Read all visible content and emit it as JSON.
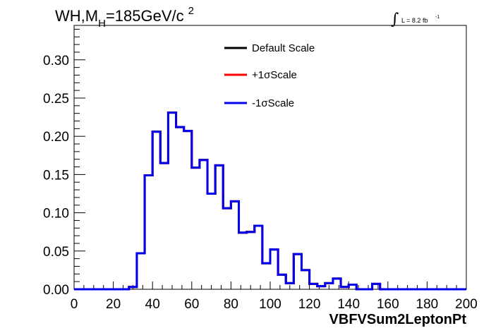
{
  "chart_data": {
    "type": "line",
    "title": {
      "main": "WH,M",
      "sub": "H",
      "rest": "=185GeV/c",
      "sup": "2"
    },
    "lumi": {
      "symbol": "∫",
      "text": "L = 8.2 fb",
      "sup": "-1"
    },
    "xlabel": "VBFVSum2LeptonPt",
    "ylabel": "",
    "xlim": [
      0,
      200
    ],
    "ylim": [
      0,
      0.345
    ],
    "x_ticks": [
      "0",
      "20",
      "40",
      "60",
      "80",
      "100",
      "120",
      "140",
      "160",
      "180",
      "200"
    ],
    "y_ticks": [
      "0.00",
      "0.05",
      "0.10",
      "0.15",
      "0.20",
      "0.25",
      "0.30"
    ],
    "bin_width": 4,
    "bin_edges_start": 0,
    "legend": [
      {
        "label": "Default Scale",
        "color": "#000000"
      },
      {
        "label": "+1σScale",
        "color": "#ff0000"
      },
      {
        "label": "-1σScale",
        "color": "#0000ee"
      }
    ],
    "series": [
      {
        "name": "Default Scale",
        "color": "#000000",
        "values": [
          0,
          0,
          0,
          0,
          0,
          0,
          0,
          0.003,
          0.047,
          0.149,
          0.206,
          0.165,
          0.231,
          0.212,
          0.207,
          0.159,
          0.169,
          0.125,
          0.162,
          0.106,
          0.115,
          0.074,
          0.075,
          0.083,
          0.034,
          0.052,
          0.019,
          0.008,
          0.046,
          0.025,
          0.007,
          0.004,
          0.008,
          0.014,
          0.003,
          0.006,
          0,
          0,
          0.007,
          0,
          0,
          0,
          0,
          0,
          0,
          0,
          0,
          0,
          0,
          0
        ]
      },
      {
        "name": "+1σScale",
        "color": "#ff0000",
        "values": [
          0,
          0,
          0,
          0,
          0,
          0,
          0,
          0.003,
          0.047,
          0.149,
          0.206,
          0.165,
          0.231,
          0.212,
          0.207,
          0.159,
          0.169,
          0.125,
          0.162,
          0.106,
          0.115,
          0.074,
          0.075,
          0.083,
          0.034,
          0.052,
          0.019,
          0.008,
          0.046,
          0.025,
          0.007,
          0.004,
          0.008,
          0.014,
          0.003,
          0.006,
          0,
          0,
          0.007,
          0,
          0,
          0,
          0,
          0,
          0,
          0,
          0,
          0,
          0,
          0
        ]
      },
      {
        "name": "-1σScale",
        "color": "#0000ee",
        "values": [
          0,
          0,
          0,
          0,
          0,
          0,
          0,
          0.003,
          0.047,
          0.149,
          0.206,
          0.165,
          0.231,
          0.212,
          0.207,
          0.159,
          0.169,
          0.125,
          0.162,
          0.106,
          0.115,
          0.074,
          0.075,
          0.083,
          0.034,
          0.052,
          0.019,
          0.008,
          0.046,
          0.025,
          0.007,
          0.004,
          0.008,
          0.014,
          0.003,
          0.006,
          0,
          0,
          0.007,
          0,
          0,
          0,
          0,
          0,
          0,
          0,
          0,
          0,
          0,
          0
        ]
      }
    ],
    "grid": false,
    "legend_position": "top-center"
  }
}
